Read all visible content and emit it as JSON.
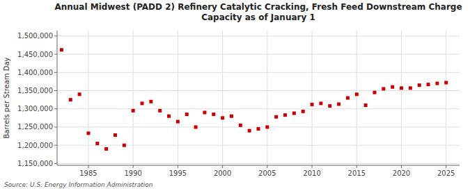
{
  "chart_data": {
    "type": "scatter",
    "title": "Annual Midwest (PADD 2) Refinery Catalytic Cracking, Fresh Feed Downstream Charge\nCapacity as of January 1",
    "y_label": "Barrels per Stream Day",
    "annotations": [
      "Source: U.S. Energy Information Administration"
    ],
    "color": "#cc0000",
    "marker": "square",
    "grid": true,
    "xlim": [
      1981.5,
      2026.5
    ],
    "ylim": [
      1145000,
      1515000
    ],
    "xticks": [
      1985,
      1990,
      1995,
      2000,
      2005,
      2010,
      2015,
      2020,
      2025
    ],
    "yticks": [
      {
        "value": 1150000,
        "label": "1,150,000"
      },
      {
        "value": 1200000,
        "label": "1,200,000"
      },
      {
        "value": 1250000,
        "label": "1,250,000"
      },
      {
        "value": 1300000,
        "label": "1,300,000"
      },
      {
        "value": 1350000,
        "label": "1,350,000"
      },
      {
        "value": 1400000,
        "label": "1,400,000"
      },
      {
        "value": 1450000,
        "label": "1,450,000"
      },
      {
        "value": 1500000,
        "label": "1,500,000"
      }
    ],
    "x": [
      1982,
      1983,
      1984,
      1985,
      1986,
      1987,
      1988,
      1989,
      1990,
      1991,
      1992,
      1993,
      1994,
      1995,
      1996,
      1997,
      1998,
      1999,
      2000,
      2001,
      2002,
      2003,
      2004,
      2005,
      2006,
      2007,
      2008,
      2009,
      2010,
      2011,
      2012,
      2013,
      2014,
      2015,
      2016,
      2017,
      2018,
      2019,
      2020,
      2021,
      2022,
      2023,
      2024,
      2025
    ],
    "values": [
      1462000,
      1325000,
      1340000,
      1233000,
      1205000,
      1190000,
      1228000,
      1200000,
      1295000,
      1315000,
      1320000,
      1295000,
      1280000,
      1265000,
      1285000,
      1250000,
      1290000,
      1285000,
      1275000,
      1280000,
      1255000,
      1240000,
      1245000,
      1250000,
      1278000,
      1283000,
      1288000,
      1293000,
      1312000,
      1315000,
      1308000,
      1313000,
      1330000,
      1340000,
      1310000,
      1345000,
      1355000,
      1360000,
      1357000,
      1357000,
      1365000,
      1367000,
      1370000,
      1372000
    ]
  }
}
